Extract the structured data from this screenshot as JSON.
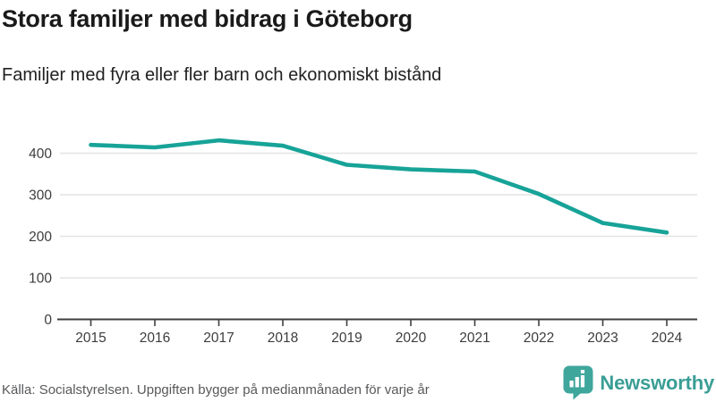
{
  "header": {
    "title": "Stora familjer med bidrag i Göteborg",
    "subtitle": "Familjer med fyra eller fler barn och ekonomiskt bistånd"
  },
  "footer": {
    "source": "Källa: Socialstyrelsen. Uppgiften bygger på medianmånaden för varje år",
    "logo_text": "Newsworthy"
  },
  "colors": {
    "line": "#17a398",
    "logo_mark": "#3fa69c",
    "logo_text": "#3a9e95",
    "grid": "#e4e4e4",
    "axis": "#3f3f3f",
    "tick_label": "#3d3d3d"
  },
  "chart_data": {
    "type": "line",
    "title": "Stora familjer med bidrag i Göteborg",
    "subtitle": "Familjer med fyra eller fler barn och ekonomiskt bistånd",
    "categories": [
      "2015",
      "2016",
      "2017",
      "2018",
      "2019",
      "2020",
      "2021",
      "2022",
      "2023",
      "2024"
    ],
    "series": [
      {
        "name": "Familjer med fyra eller fler barn och ekonomiskt bistånd",
        "values": [
          420,
          414,
          431,
          418,
          372,
          361,
          356,
          302,
          232,
          209
        ]
      }
    ],
    "xlabel": "",
    "ylabel": "",
    "ylim": [
      0,
      450
    ],
    "y_ticks": [
      0,
      100,
      200,
      300,
      400
    ],
    "grid": "horizontal-only",
    "legend": false
  }
}
